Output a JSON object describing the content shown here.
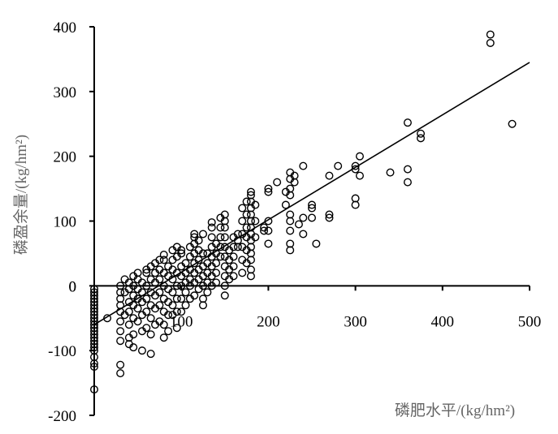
{
  "chart_data": {
    "type": "scatter",
    "xlabel": "磷肥水平/(kg/hm²)",
    "ylabel": "磷盈余量/(kg/hm²)",
    "xlim": [
      0,
      500
    ],
    "ylim": [
      -200,
      400
    ],
    "xticks": [
      "100",
      "200",
      "300",
      "400",
      "500"
    ],
    "yticks": [
      "400",
      "300",
      "200",
      "100",
      "0",
      "-100",
      "-200"
    ],
    "x_zero_label": "0",
    "grid": false,
    "legend": "none",
    "marker": "open-circle",
    "trendline": {
      "x": [
        0,
        500
      ],
      "y": [
        -60,
        345
      ]
    },
    "points": [
      [
        0,
        -160
      ],
      [
        0,
        -125
      ],
      [
        0,
        -120
      ],
      [
        0,
        -110
      ],
      [
        0,
        -100
      ],
      [
        0,
        -95
      ],
      [
        0,
        -90
      ],
      [
        0,
        -85
      ],
      [
        0,
        -80
      ],
      [
        0,
        -75
      ],
      [
        0,
        -70
      ],
      [
        0,
        -65
      ],
      [
        0,
        -60
      ],
      [
        0,
        -55
      ],
      [
        0,
        -50
      ],
      [
        0,
        -45
      ],
      [
        0,
        -40
      ],
      [
        0,
        -35
      ],
      [
        0,
        -30
      ],
      [
        0,
        -25
      ],
      [
        0,
        -20
      ],
      [
        0,
        -15
      ],
      [
        0,
        -10
      ],
      [
        0,
        -5
      ],
      [
        15,
        -50
      ],
      [
        30,
        -135
      ],
      [
        30,
        -122
      ],
      [
        30,
        -85
      ],
      [
        30,
        -70
      ],
      [
        30,
        -55
      ],
      [
        30,
        -40
      ],
      [
        30,
        -30
      ],
      [
        30,
        -20
      ],
      [
        30,
        -10
      ],
      [
        30,
        0
      ],
      [
        35,
        -10
      ],
      [
        35,
        10
      ],
      [
        35,
        -45
      ],
      [
        40,
        -90
      ],
      [
        40,
        -80
      ],
      [
        40,
        -60
      ],
      [
        40,
        -40
      ],
      [
        40,
        -25
      ],
      [
        40,
        -5
      ],
      [
        40,
        5
      ],
      [
        45,
        -95
      ],
      [
        45,
        -75
      ],
      [
        45,
        -50
      ],
      [
        45,
        -30
      ],
      [
        45,
        -15
      ],
      [
        45,
        0
      ],
      [
        45,
        15
      ],
      [
        50,
        -55
      ],
      [
        50,
        -35
      ],
      [
        50,
        -20
      ],
      [
        50,
        -5
      ],
      [
        50,
        10
      ],
      [
        50,
        20
      ],
      [
        55,
        -100
      ],
      [
        55,
        -70
      ],
      [
        55,
        -45
      ],
      [
        55,
        -25
      ],
      [
        55,
        -10
      ],
      [
        55,
        5
      ],
      [
        60,
        -65
      ],
      [
        60,
        -40
      ],
      [
        60,
        -20
      ],
      [
        60,
        0
      ],
      [
        60,
        20
      ],
      [
        60,
        25
      ],
      [
        65,
        -105
      ],
      [
        65,
        -75
      ],
      [
        65,
        -50
      ],
      [
        65,
        -30
      ],
      [
        65,
        -10
      ],
      [
        65,
        10
      ],
      [
        65,
        30
      ],
      [
        70,
        -60
      ],
      [
        70,
        -35
      ],
      [
        70,
        -15
      ],
      [
        70,
        5
      ],
      [
        70,
        20
      ],
      [
        70,
        35
      ],
      [
        75,
        -55
      ],
      [
        75,
        -30
      ],
      [
        75,
        -10
      ],
      [
        75,
        10
      ],
      [
        75,
        25
      ],
      [
        75,
        40
      ],
      [
        80,
        -80
      ],
      [
        80,
        -60
      ],
      [
        80,
        -40
      ],
      [
        80,
        -20
      ],
      [
        80,
        0
      ],
      [
        80,
        20
      ],
      [
        80,
        40
      ],
      [
        80,
        48
      ],
      [
        85,
        -70
      ],
      [
        85,
        -45
      ],
      [
        85,
        -25
      ],
      [
        85,
        -5
      ],
      [
        85,
        15
      ],
      [
        85,
        30
      ],
      [
        90,
        -45
      ],
      [
        90,
        -30
      ],
      [
        90,
        -10
      ],
      [
        90,
        10
      ],
      [
        90,
        25
      ],
      [
        90,
        40
      ],
      [
        90,
        55
      ],
      [
        95,
        -65
      ],
      [
        95,
        -40
      ],
      [
        95,
        -20
      ],
      [
        95,
        0
      ],
      [
        95,
        20
      ],
      [
        95,
        45
      ],
      [
        95,
        60
      ],
      [
        100,
        -40
      ],
      [
        100,
        -20
      ],
      [
        100,
        0
      ],
      [
        100,
        15
      ],
      [
        100,
        30
      ],
      [
        100,
        50
      ],
      [
        100,
        55
      ],
      [
        105,
        -30
      ],
      [
        105,
        -10
      ],
      [
        105,
        5
      ],
      [
        105,
        20
      ],
      [
        105,
        35
      ],
      [
        110,
        -20
      ],
      [
        110,
        0
      ],
      [
        110,
        10
      ],
      [
        110,
        25
      ],
      [
        110,
        45
      ],
      [
        110,
        60
      ],
      [
        115,
        -15
      ],
      [
        115,
        5
      ],
      [
        115,
        20
      ],
      [
        115,
        35
      ],
      [
        115,
        50
      ],
      [
        115,
        65
      ],
      [
        115,
        75
      ],
      [
        115,
        80
      ],
      [
        120,
        -5
      ],
      [
        120,
        10
      ],
      [
        120,
        25
      ],
      [
        120,
        40
      ],
      [
        120,
        55
      ],
      [
        120,
        70
      ],
      [
        125,
        -30
      ],
      [
        125,
        -20
      ],
      [
        125,
        0
      ],
      [
        125,
        15
      ],
      [
        125,
        30
      ],
      [
        125,
        50
      ],
      [
        125,
        80
      ],
      [
        130,
        -10
      ],
      [
        130,
        5
      ],
      [
        130,
        20
      ],
      [
        130,
        35
      ],
      [
        130,
        50
      ],
      [
        135,
        0
      ],
      [
        135,
        15
      ],
      [
        135,
        30
      ],
      [
        135,
        45
      ],
      [
        135,
        60
      ],
      [
        135,
        75
      ],
      [
        135,
        90
      ],
      [
        135,
        98
      ],
      [
        140,
        5
      ],
      [
        140,
        20
      ],
      [
        140,
        35
      ],
      [
        140,
        50
      ],
      [
        140,
        65
      ],
      [
        145,
        45
      ],
      [
        145,
        60
      ],
      [
        145,
        75
      ],
      [
        145,
        90
      ],
      [
        145,
        105
      ],
      [
        150,
        -15
      ],
      [
        150,
        0
      ],
      [
        150,
        15
      ],
      [
        150,
        30
      ],
      [
        150,
        45
      ],
      [
        150,
        60
      ],
      [
        150,
        75
      ],
      [
        150,
        90
      ],
      [
        150,
        100
      ],
      [
        150,
        110
      ],
      [
        155,
        10
      ],
      [
        155,
        25
      ],
      [
        155,
        40
      ],
      [
        155,
        55
      ],
      [
        160,
        15
      ],
      [
        160,
        30
      ],
      [
        160,
        45
      ],
      [
        160,
        60
      ],
      [
        160,
        75
      ],
      [
        165,
        60
      ],
      [
        165,
        70
      ],
      [
        165,
        80
      ],
      [
        170,
        20
      ],
      [
        170,
        40
      ],
      [
        170,
        60
      ],
      [
        170,
        80
      ],
      [
        170,
        100
      ],
      [
        170,
        120
      ],
      [
        175,
        35
      ],
      [
        175,
        55
      ],
      [
        175,
        75
      ],
      [
        175,
        90
      ],
      [
        175,
        110
      ],
      [
        175,
        130
      ],
      [
        180,
        15
      ],
      [
        180,
        25
      ],
      [
        180,
        40
      ],
      [
        180,
        50
      ],
      [
        180,
        60
      ],
      [
        180,
        70
      ],
      [
        180,
        80
      ],
      [
        180,
        90
      ],
      [
        180,
        100
      ],
      [
        180,
        110
      ],
      [
        180,
        120
      ],
      [
        180,
        130
      ],
      [
        180,
        140
      ],
      [
        180,
        145
      ],
      [
        185,
        75
      ],
      [
        185,
        100
      ],
      [
        185,
        125
      ],
      [
        195,
        85
      ],
      [
        195,
        90
      ],
      [
        200,
        65
      ],
      [
        200,
        85
      ],
      [
        200,
        100
      ],
      [
        200,
        145
      ],
      [
        200,
        150
      ],
      [
        210,
        160
      ],
      [
        220,
        125
      ],
      [
        220,
        145
      ],
      [
        225,
        55
      ],
      [
        225,
        65
      ],
      [
        225,
        85
      ],
      [
        225,
        100
      ],
      [
        225,
        110
      ],
      [
        225,
        140
      ],
      [
        225,
        150
      ],
      [
        225,
        165
      ],
      [
        225,
        175
      ],
      [
        230,
        160
      ],
      [
        230,
        170
      ],
      [
        235,
        95
      ],
      [
        240,
        80
      ],
      [
        240,
        105
      ],
      [
        240,
        185
      ],
      [
        250,
        105
      ],
      [
        250,
        120
      ],
      [
        250,
        125
      ],
      [
        255,
        65
      ],
      [
        270,
        105
      ],
      [
        270,
        110
      ],
      [
        270,
        170
      ],
      [
        280,
        185
      ],
      [
        300,
        125
      ],
      [
        300,
        135
      ],
      [
        300,
        180
      ],
      [
        300,
        185
      ],
      [
        305,
        170
      ],
      [
        305,
        200
      ],
      [
        340,
        175
      ],
      [
        360,
        160
      ],
      [
        360,
        180
      ],
      [
        360,
        252
      ],
      [
        375,
        228
      ],
      [
        375,
        235
      ],
      [
        455,
        375
      ],
      [
        455,
        388
      ],
      [
        480,
        250
      ]
    ]
  }
}
